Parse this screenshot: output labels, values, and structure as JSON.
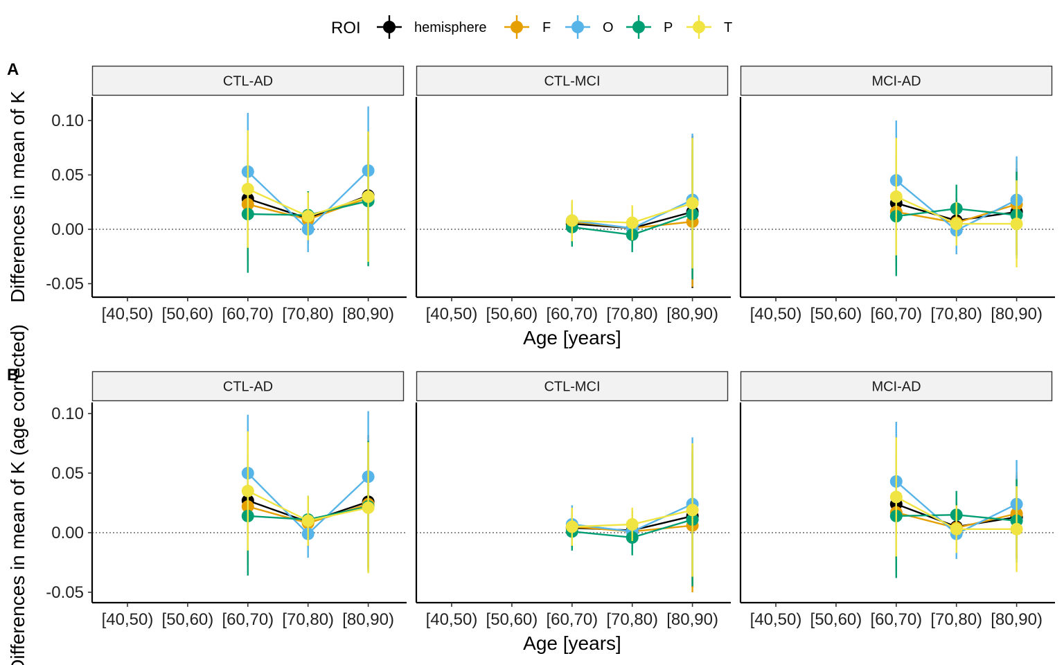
{
  "legend": {
    "title": "ROI",
    "series": [
      {
        "name": "hemisphere",
        "color": "#000000"
      },
      {
        "name": "F",
        "color": "#E69F00"
      },
      {
        "name": "O",
        "color": "#56B4E9"
      },
      {
        "name": "P",
        "color": "#009E73"
      },
      {
        "name": "T",
        "color": "#F0E442"
      }
    ]
  },
  "chart_data": [
    {
      "type": "line",
      "tag": "A",
      "ylabel": "Differences in mean of K",
      "xlabel": "Age [years]",
      "categories": [
        "[40,50)",
        "[50,60)",
        "[60,70)",
        "[70,80)",
        "[80,90)"
      ],
      "ylim": [
        -0.062,
        0.122
      ],
      "yticks": [
        "0.10",
        "0.05",
        "0.00",
        "-0.05"
      ],
      "ytick_values": [
        0.1,
        0.05,
        0.0,
        -0.05
      ],
      "reference_line": 0,
      "panels": [
        {
          "strip": "CTL-AD",
          "series": [
            {
              "name": "hemisphere",
              "values": [
                null,
                null,
                0.028,
                0.01,
                0.031
              ],
              "lower": [
                null,
                null,
                -0.025,
                -0.012,
                -0.028
              ],
              "upper": [
                null,
                null,
                0.081,
                0.032,
                0.09
              ]
            },
            {
              "name": "F",
              "values": [
                null,
                null,
                0.023,
                0.009,
                0.029
              ],
              "lower": [
                null,
                null,
                -0.03,
                -0.013,
                -0.03
              ],
              "upper": [
                null,
                null,
                0.076,
                0.031,
                0.088
              ]
            },
            {
              "name": "O",
              "values": [
                null,
                null,
                0.053,
                0.0,
                0.054
              ],
              "lower": [
                null,
                null,
                -0.001,
                -0.021,
                -0.005
              ],
              "upper": [
                null,
                null,
                0.107,
                0.021,
                0.113
              ]
            },
            {
              "name": "P",
              "values": [
                null,
                null,
                0.014,
                0.013,
                0.026
              ],
              "lower": [
                null,
                null,
                -0.04,
                -0.009,
                -0.034
              ],
              "upper": [
                null,
                null,
                0.068,
                0.035,
                0.086
              ]
            },
            {
              "name": "T",
              "values": [
                null,
                null,
                0.037,
                0.012,
                0.03
              ],
              "lower": [
                null,
                null,
                -0.017,
                -0.01,
                -0.03
              ],
              "upper": [
                null,
                null,
                0.091,
                0.034,
                0.09
              ]
            }
          ]
        },
        {
          "strip": "CTL-MCI",
          "series": [
            {
              "name": "hemisphere",
              "values": [
                null,
                null,
                0.005,
                0.001,
                0.016
              ],
              "lower": [
                null,
                null,
                -0.012,
                -0.016,
                -0.054
              ],
              "upper": [
                null,
                null,
                0.022,
                0.018,
                0.086
              ]
            },
            {
              "name": "F",
              "values": [
                null,
                null,
                0.007,
                0.001,
                0.007
              ],
              "lower": [
                null,
                null,
                -0.01,
                -0.016,
                -0.053
              ],
              "upper": [
                null,
                null,
                0.024,
                0.018,
                0.067
              ]
            },
            {
              "name": "O",
              "values": [
                null,
                null,
                0.008,
                0.001,
                0.027
              ],
              "lower": [
                null,
                null,
                -0.009,
                -0.016,
                -0.033
              ],
              "upper": [
                null,
                null,
                0.025,
                0.018,
                0.088
              ]
            },
            {
              "name": "P",
              "values": [
                null,
                null,
                0.002,
                -0.005,
                0.014
              ],
              "lower": [
                null,
                null,
                -0.016,
                -0.021,
                -0.046
              ],
              "upper": [
                null,
                null,
                0.02,
                0.011,
                0.074
              ]
            },
            {
              "name": "T",
              "values": [
                null,
                null,
                0.008,
                0.006,
                0.024
              ],
              "lower": [
                null,
                null,
                -0.011,
                -0.01,
                -0.036
              ],
              "upper": [
                null,
                null,
                0.027,
                0.022,
                0.084
              ]
            }
          ]
        },
        {
          "strip": "MCI-AD",
          "series": [
            {
              "name": "hemisphere",
              "values": [
                null,
                null,
                0.024,
                0.008,
                0.016
              ],
              "lower": [
                null,
                null,
                -0.03,
                -0.012,
                -0.024
              ],
              "upper": [
                null,
                null,
                0.078,
                0.028,
                0.056
              ]
            },
            {
              "name": "F",
              "values": [
                null,
                null,
                0.016,
                0.006,
                0.023
              ],
              "lower": [
                null,
                null,
                -0.038,
                -0.014,
                -0.017
              ],
              "upper": [
                null,
                null,
                0.07,
                0.026,
                0.063
              ]
            },
            {
              "name": "O",
              "values": [
                null,
                null,
                0.045,
                -0.001,
                0.027
              ],
              "lower": [
                null,
                null,
                -0.009,
                -0.023,
                -0.013
              ],
              "upper": [
                null,
                null,
                0.1,
                0.021,
                0.067
              ]
            },
            {
              "name": "P",
              "values": [
                null,
                null,
                0.012,
                0.019,
                0.013
              ],
              "lower": [
                null,
                null,
                -0.043,
                -0.003,
                -0.027
              ],
              "upper": [
                null,
                null,
                0.067,
                0.041,
                0.053
              ]
            },
            {
              "name": "T",
              "values": [
                null,
                null,
                0.03,
                0.005,
                0.005
              ],
              "lower": [
                null,
                null,
                -0.024,
                -0.015,
                -0.035
              ],
              "upper": [
                null,
                null,
                0.084,
                0.025,
                0.045
              ]
            }
          ]
        }
      ]
    },
    {
      "type": "line",
      "tag": "B",
      "ylabel": "Differences in mean of K (age corrected)",
      "xlabel": "Age [years]",
      "categories": [
        "[40,50)",
        "[50,60)",
        "[60,70)",
        "[70,80)",
        "[80,90)"
      ],
      "ylim": [
        -0.058,
        0.109
      ],
      "yticks": [
        "0.10",
        "0.05",
        "0.00",
        "-0.05"
      ],
      "ytick_values": [
        0.1,
        0.05,
        0.0,
        -0.05
      ],
      "reference_line": 0,
      "panels": [
        {
          "strip": "CTL-AD",
          "series": [
            {
              "name": "hemisphere",
              "values": [
                null,
                null,
                0.027,
                0.009,
                0.026
              ],
              "lower": [
                null,
                null,
                -0.022,
                -0.012,
                -0.03
              ],
              "upper": [
                null,
                null,
                0.076,
                0.03,
                0.082
              ]
            },
            {
              "name": "F",
              "values": [
                null,
                null,
                0.022,
                0.008,
                0.024
              ],
              "lower": [
                null,
                null,
                -0.027,
                -0.013,
                -0.032
              ],
              "upper": [
                null,
                null,
                0.071,
                0.029,
                0.08
              ]
            },
            {
              "name": "O",
              "values": [
                null,
                null,
                0.05,
                -0.001,
                0.047
              ],
              "lower": [
                null,
                null,
                0.001,
                -0.021,
                -0.008
              ],
              "upper": [
                null,
                null,
                0.099,
                0.019,
                0.102
              ]
            },
            {
              "name": "P",
              "values": [
                null,
                null,
                0.014,
                0.011,
                0.022
              ],
              "lower": [
                null,
                null,
                -0.036,
                -0.009,
                -0.033
              ],
              "upper": [
                null,
                null,
                0.064,
                0.031,
                0.077
              ]
            },
            {
              "name": "T",
              "values": [
                null,
                null,
                0.035,
                0.01,
                0.021
              ],
              "lower": [
                null,
                null,
                -0.015,
                -0.011,
                -0.034
              ],
              "upper": [
                null,
                null,
                0.085,
                0.031,
                0.076
              ]
            }
          ]
        },
        {
          "strip": "CTL-MCI",
          "series": [
            {
              "name": "hemisphere",
              "values": [
                null,
                null,
                0.004,
                0.002,
                0.014
              ],
              "lower": [
                null,
                null,
                -0.012,
                -0.014,
                -0.046
              ],
              "upper": [
                null,
                null,
                0.02,
                0.018,
                0.074
              ]
            },
            {
              "name": "F",
              "values": [
                null,
                null,
                0.005,
                0.001,
                0.006
              ],
              "lower": [
                null,
                null,
                -0.011,
                -0.015,
                -0.05
              ],
              "upper": [
                null,
                null,
                0.021,
                0.017,
                0.062
              ]
            },
            {
              "name": "O",
              "values": [
                null,
                null,
                0.007,
                0.001,
                0.024
              ],
              "lower": [
                null,
                null,
                -0.009,
                -0.015,
                -0.032
              ],
              "upper": [
                null,
                null,
                0.023,
                0.017,
                0.08
              ]
            },
            {
              "name": "P",
              "values": [
                null,
                null,
                0.001,
                -0.004,
                0.011
              ],
              "lower": [
                null,
                null,
                -0.015,
                -0.019,
                -0.045
              ],
              "upper": [
                null,
                null,
                0.017,
                0.011,
                0.067
              ]
            },
            {
              "name": "T",
              "values": [
                null,
                null,
                0.005,
                0.007,
                0.019
              ],
              "lower": [
                null,
                null,
                -0.011,
                -0.007,
                -0.037
              ],
              "upper": [
                null,
                null,
                0.021,
                0.021,
                0.075
              ]
            }
          ]
        },
        {
          "strip": "MCI-AD",
          "series": [
            {
              "name": "hemisphere",
              "values": [
                null,
                null,
                0.024,
                0.005,
                0.013
              ],
              "lower": [
                null,
                null,
                -0.026,
                -0.015,
                -0.022
              ],
              "upper": [
                null,
                null,
                0.074,
                0.025,
                0.048
              ]
            },
            {
              "name": "F",
              "values": [
                null,
                null,
                0.017,
                0.004,
                0.016
              ],
              "lower": [
                null,
                null,
                -0.033,
                -0.016,
                -0.019
              ],
              "upper": [
                null,
                null,
                0.067,
                0.024,
                0.051
              ]
            },
            {
              "name": "O",
              "values": [
                null,
                null,
                0.043,
                -0.001,
                0.024
              ],
              "lower": [
                null,
                null,
                -0.007,
                -0.022,
                -0.013
              ],
              "upper": [
                null,
                null,
                0.093,
                0.02,
                0.061
              ]
            },
            {
              "name": "P",
              "values": [
                null,
                null,
                0.014,
                0.015,
                0.01
              ],
              "lower": [
                null,
                null,
                -0.038,
                -0.005,
                -0.025
              ],
              "upper": [
                null,
                null,
                0.066,
                0.035,
                0.045
              ]
            },
            {
              "name": "T",
              "values": [
                null,
                null,
                0.03,
                0.003,
                0.003
              ],
              "lower": [
                null,
                null,
                -0.02,
                -0.017,
                -0.033
              ],
              "upper": [
                null,
                null,
                0.08,
                0.023,
                0.039
              ]
            }
          ]
        }
      ]
    }
  ]
}
